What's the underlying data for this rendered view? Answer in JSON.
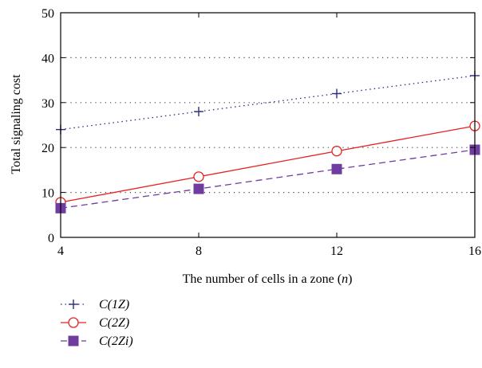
{
  "chart_data": {
    "type": "line",
    "title": "",
    "xlabel": "The number of cells in a zone (",
    "xlabel_var": "n",
    "xlabel_tail": ")",
    "ylabel": "Total signaling cost",
    "x": [
      4,
      8,
      12,
      16
    ],
    "xlim": [
      4,
      16
    ],
    "ylim": [
      0,
      50
    ],
    "xticks": [
      "4",
      "8",
      "12",
      "16"
    ],
    "yticks": [
      "0",
      "10",
      "20",
      "30",
      "40",
      "50"
    ],
    "grid": {
      "y": true,
      "x": false,
      "style": "dotted"
    },
    "legend_position": "bottom-left",
    "series": [
      {
        "name": "C(1Z)",
        "values": [
          24,
          28,
          32,
          36
        ],
        "color": "#2b2f7d",
        "line_style": "dotted",
        "marker": "plus"
      },
      {
        "name": "C(2Z)",
        "values": [
          7.8,
          13.5,
          19.2,
          24.8
        ],
        "color": "#e8201f",
        "line_style": "solid",
        "marker": "open-circle"
      },
      {
        "name": "C(2Zi)",
        "values": [
          6.5,
          10.8,
          15.2,
          19.5
        ],
        "color": "#6f3d9f",
        "line_style": "dashed",
        "marker": "filled-square"
      }
    ]
  }
}
